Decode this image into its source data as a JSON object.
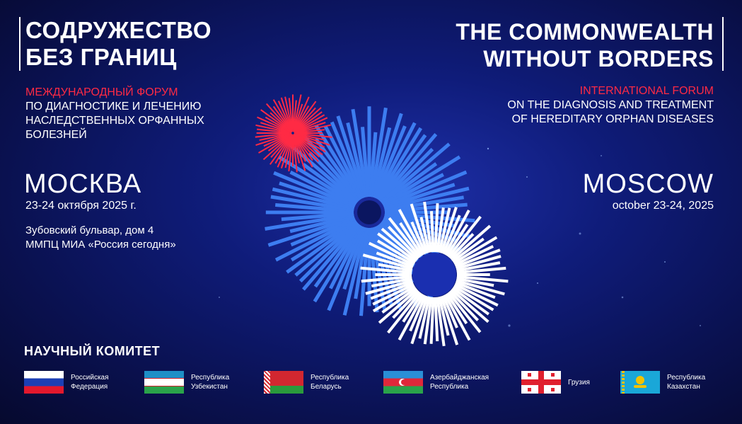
{
  "title_ru": [
    "СОДРУЖЕСТВО",
    "БЕЗ ГРАНИЦ"
  ],
  "title_en": [
    "THE COMMONWEALTH",
    "WITHOUT BORDERS"
  ],
  "subtitle_ru": {
    "highlight": "МЕЖДУНАРОДНЫЙ ФОРУМ",
    "lines": [
      "ПО ДИАГНОСТИКЕ И ЛЕЧЕНИЮ",
      "НАСЛЕДСТВЕННЫХ ОРФАННЫХ",
      "БОЛЕЗНЕЙ"
    ]
  },
  "subtitle_en": {
    "highlight": "INTERNATIONAL FORUM",
    "lines": [
      "ON THE DIAGNOSIS AND TREATMENT",
      "OF HEREDITARY ORPHAN DISEASES"
    ]
  },
  "city_ru": "МОСКВА",
  "city_en": "MOSCOW",
  "date_ru": "23-24 октября 2025 г.",
  "date_en": "october 23-24, 2025",
  "address": [
    "Зубовский бульвар, дом 4",
    "ММПЦ МИА «Россия сегодня»"
  ],
  "committee_title": "НАУЧНЫЙ КОМИТЕТ",
  "countries": [
    {
      "flag": "russia",
      "label": [
        "Российская",
        "Федерация"
      ]
    },
    {
      "flag": "uzbekistan",
      "label": [
        "Республика",
        "Узбекистан"
      ]
    },
    {
      "flag": "belarus",
      "label": [
        "Республика",
        "Беларусь"
      ]
    },
    {
      "flag": "azerbaijan",
      "label": [
        "Азербайджанская",
        "Республика"
      ]
    },
    {
      "flag": "georgia",
      "label": [
        "Грузия"
      ]
    },
    {
      "flag": "kazakhstan",
      "label": [
        "Республика",
        "Казахстан"
      ]
    }
  ],
  "colors": {
    "accent_red": "#ff2a44",
    "accent_blue": "#3d7df0",
    "background": "#0f1c7a"
  }
}
